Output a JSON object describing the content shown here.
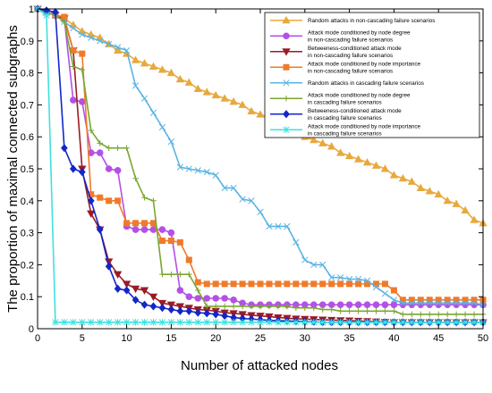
{
  "chart_data": {
    "type": "line",
    "xlabel": "Number of attacked nodes",
    "ylabel": "The proportion of maximal connected subgraphs",
    "xlim": [
      0,
      50
    ],
    "ylim": [
      0,
      1
    ],
    "xticks": [
      0,
      5,
      10,
      15,
      20,
      25,
      30,
      35,
      40,
      45,
      50
    ],
    "yticks": [
      0,
      0.1,
      0.2,
      0.3,
      0.4,
      0.5,
      0.6,
      0.7,
      0.8,
      0.9,
      1
    ],
    "grid": false,
    "legend_position": "top-right",
    "x": [
      0,
      1,
      2,
      3,
      4,
      5,
      6,
      7,
      8,
      9,
      10,
      11,
      12,
      13,
      14,
      15,
      16,
      17,
      18,
      19,
      20,
      21,
      22,
      23,
      24,
      25,
      26,
      27,
      28,
      29,
      30,
      31,
      32,
      33,
      34,
      35,
      36,
      37,
      38,
      39,
      40,
      41,
      42,
      43,
      44,
      45,
      46,
      47,
      48,
      49,
      50
    ],
    "series": [
      {
        "name": [
          "Random attacks in non-cascading failure scenarios"
        ],
        "color": "#E8A93C",
        "marker": "triangle-up",
        "filled": true,
        "values": [
          1,
          0.99,
          0.98,
          0.97,
          0.95,
          0.93,
          0.92,
          0.91,
          0.89,
          0.87,
          0.86,
          0.84,
          0.83,
          0.82,
          0.81,
          0.8,
          0.78,
          0.77,
          0.75,
          0.74,
          0.73,
          0.72,
          0.71,
          0.7,
          0.68,
          0.67,
          0.66,
          0.64,
          0.63,
          0.62,
          0.6,
          0.59,
          0.58,
          0.57,
          0.55,
          0.54,
          0.53,
          0.52,
          0.51,
          0.5,
          0.48,
          0.47,
          0.46,
          0.44,
          0.43,
          0.42,
          0.4,
          0.39,
          0.37,
          0.34,
          0.33
        ]
      },
      {
        "name": [
          "Attack mode conditioned by node degree",
          "in non-cascading failure scenarios"
        ],
        "color": "#B450E6",
        "marker": "circle",
        "filled": true,
        "values": [
          1,
          0.99,
          0.98,
          0.97,
          0.715,
          0.71,
          0.55,
          0.55,
          0.5,
          0.495,
          0.32,
          0.31,
          0.31,
          0.31,
          0.31,
          0.3,
          0.12,
          0.1,
          0.095,
          0.095,
          0.095,
          0.095,
          0.09,
          0.08,
          0.075,
          0.075,
          0.075,
          0.075,
          0.075,
          0.075,
          0.075,
          0.075,
          0.075,
          0.075,
          0.075,
          0.075,
          0.075,
          0.075,
          0.075,
          0.075,
          0.075,
          0.075,
          0.075,
          0.075,
          0.075,
          0.075,
          0.075,
          0.075,
          0.075,
          0.075,
          0.075
        ]
      },
      {
        "name": [
          "Betweeness-conditioned attack mode",
          "in non-cascading failure scenarios"
        ],
        "color": "#9A1B25",
        "marker": "triangle-down",
        "filled": true,
        "values": [
          1,
          0.99,
          0.98,
          0.97,
          0.87,
          0.5,
          0.36,
          0.31,
          0.21,
          0.17,
          0.14,
          0.125,
          0.12,
          0.1,
          0.08,
          0.075,
          0.07,
          0.065,
          0.06,
          0.058,
          0.055,
          0.05,
          0.048,
          0.045,
          0.042,
          0.04,
          0.038,
          0.035,
          0.033,
          0.031,
          0.03,
          0.029,
          0.028,
          0.027,
          0.026,
          0.025,
          0.024,
          0.023,
          0.022,
          0.021,
          0.02,
          0.02,
          0.02,
          0.02,
          0.02,
          0.02,
          0.02,
          0.02,
          0.02,
          0.02,
          0.02
        ]
      },
      {
        "name": [
          "Attack mode conditioned by node importance",
          "in non-cascading failure scenarios"
        ],
        "color": "#F07A2A",
        "marker": "square",
        "filled": true,
        "values": [
          1,
          0.99,
          0.98,
          0.975,
          0.87,
          0.86,
          0.42,
          0.41,
          0.4,
          0.4,
          0.33,
          0.33,
          0.33,
          0.33,
          0.275,
          0.275,
          0.27,
          0.215,
          0.145,
          0.14,
          0.14,
          0.14,
          0.14,
          0.14,
          0.14,
          0.14,
          0.14,
          0.14,
          0.14,
          0.14,
          0.14,
          0.14,
          0.14,
          0.14,
          0.14,
          0.14,
          0.14,
          0.14,
          0.14,
          0.14,
          0.12,
          0.09,
          0.09,
          0.09,
          0.09,
          0.09,
          0.09,
          0.09,
          0.09,
          0.09,
          0.09
        ]
      },
      {
        "name": [
          "Random attacks in cascading failure scenarios"
        ],
        "color": "#5BB3E3",
        "marker": "x",
        "filled": false,
        "values": [
          1,
          0.99,
          0.98,
          0.96,
          0.94,
          0.92,
          0.91,
          0.9,
          0.89,
          0.88,
          0.87,
          0.76,
          0.72,
          0.675,
          0.63,
          0.585,
          0.505,
          0.5,
          0.495,
          0.49,
          0.48,
          0.44,
          0.44,
          0.405,
          0.4,
          0.365,
          0.32,
          0.32,
          0.32,
          0.27,
          0.215,
          0.2,
          0.2,
          0.16,
          0.16,
          0.155,
          0.155,
          0.15,
          0.13,
          0.11,
          0.09,
          0.08,
          0.08,
          0.08,
          0.08,
          0.08,
          0.08,
          0.08,
          0.08,
          0.08,
          0.075
        ]
      },
      {
        "name": [
          "Attack mode conditioned by node degree",
          "in cascading failure scenarios"
        ],
        "color": "#7AA632",
        "marker": "plus",
        "filled": false,
        "values": [
          1,
          0.99,
          0.98,
          0.96,
          0.82,
          0.81,
          0.62,
          0.58,
          0.565,
          0.565,
          0.565,
          0.47,
          0.41,
          0.4,
          0.17,
          0.17,
          0.17,
          0.17,
          0.12,
          0.07,
          0.07,
          0.07,
          0.07,
          0.07,
          0.07,
          0.07,
          0.07,
          0.07,
          0.07,
          0.065,
          0.065,
          0.065,
          0.06,
          0.06,
          0.055,
          0.055,
          0.055,
          0.055,
          0.055,
          0.055,
          0.055,
          0.045,
          0.045,
          0.045,
          0.045,
          0.045,
          0.045,
          0.045,
          0.045,
          0.045,
          0.045
        ]
      },
      {
        "name": [
          "Betweeness-conditioned attack mode",
          "in cascading failure scenarios"
        ],
        "color": "#1226C9",
        "marker": "diamond",
        "filled": true,
        "values": [
          1,
          0.995,
          0.99,
          0.565,
          0.5,
          0.49,
          0.4,
          0.31,
          0.195,
          0.125,
          0.12,
          0.09,
          0.075,
          0.07,
          0.065,
          0.06,
          0.055,
          0.055,
          0.05,
          0.048,
          0.045,
          0.04,
          0.035,
          0.032,
          0.03,
          0.028,
          0.026,
          0.025,
          0.024,
          0.023,
          0.022,
          0.021,
          0.02,
          0.02,
          0.02,
          0.02,
          0.02,
          0.02,
          0.02,
          0.02,
          0.02,
          0.02,
          0.02,
          0.02,
          0.02,
          0.02,
          0.02,
          0.02,
          0.02,
          0.02,
          0.02
        ]
      },
      {
        "name": [
          "Attack mode conditioned by node importance",
          "in cascading failure scenarios"
        ],
        "color": "#3FE1E1",
        "marker": "star",
        "filled": false,
        "values": [
          1,
          0.98,
          0.02,
          0.02,
          0.02,
          0.02,
          0.02,
          0.02,
          0.02,
          0.02,
          0.02,
          0.02,
          0.02,
          0.02,
          0.02,
          0.02,
          0.02,
          0.02,
          0.02,
          0.02,
          0.02,
          0.02,
          0.02,
          0.02,
          0.02,
          0.02,
          0.02,
          0.02,
          0.02,
          0.02,
          0.02,
          0.02,
          0.02,
          0.02,
          0.02,
          0.02,
          0.02,
          0.02,
          0.02,
          0.02,
          0.02,
          0.02,
          0.02,
          0.02,
          0.02,
          0.02,
          0.02,
          0.02,
          0.02,
          0.02,
          0.02
        ]
      }
    ]
  }
}
